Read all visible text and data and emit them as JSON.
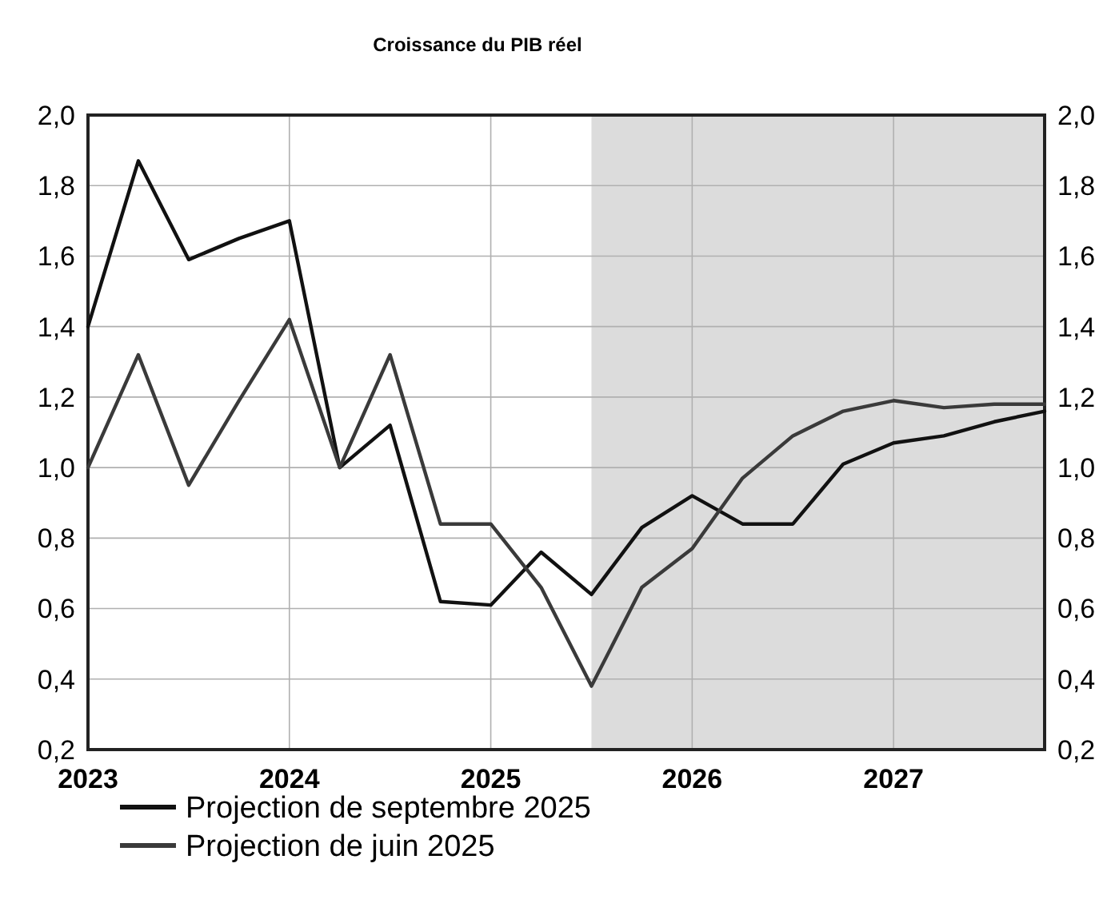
{
  "chart_data": {
    "type": "line",
    "title": "Croissance du PIB réel",
    "x": [
      2023,
      2023.25,
      2023.5,
      2023.75,
      2024,
      2024.25,
      2024.5,
      2024.75,
      2025,
      2025.25,
      2025.5,
      2025.75,
      2026,
      2026.25,
      2026.5,
      2026.75,
      2027,
      2027.25,
      2027.5,
      2027.75
    ],
    "series": [
      {
        "name": "Projection de septembre 2025",
        "color": "#111111",
        "values": [
          1.4,
          1.87,
          1.59,
          1.65,
          1.7,
          1.0,
          1.12,
          0.62,
          0.61,
          0.76,
          0.64,
          0.83,
          0.92,
          0.84,
          0.84,
          1.01,
          1.07,
          1.09,
          1.13,
          1.16
        ]
      },
      {
        "name": "Projection de juin 2025",
        "color": "#3a3a3a",
        "values": [
          1.0,
          1.32,
          0.95,
          1.19,
          1.42,
          1.0,
          1.32,
          0.84,
          0.84,
          0.66,
          0.38,
          0.66,
          0.77,
          0.97,
          1.09,
          1.16,
          1.19,
          1.17,
          1.18,
          1.18
        ]
      }
    ],
    "xlim": [
      2023,
      2027.75
    ],
    "xticks": [
      2023,
      2024,
      2025,
      2026,
      2027
    ],
    "ylim": [
      0.2,
      2.0
    ],
    "yticks": [
      {
        "value": 0.2,
        "label": "0,2"
      },
      {
        "value": 0.4,
        "label": "0,4"
      },
      {
        "value": 0.6,
        "label": "0,6"
      },
      {
        "value": 0.8,
        "label": "0,8"
      },
      {
        "value": 1.0,
        "label": "1,0"
      },
      {
        "value": 1.2,
        "label": "1,2"
      },
      {
        "value": 1.4,
        "label": "1,4"
      },
      {
        "value": 1.6,
        "label": "1,6"
      },
      {
        "value": 1.8,
        "label": "1,8"
      },
      {
        "value": 2.0,
        "label": "2,0"
      }
    ],
    "y2lim": [
      0.2,
      2.0
    ],
    "y2ticks": [
      {
        "value": 0.2,
        "label": "0,2"
      },
      {
        "value": 0.4,
        "label": "0,4"
      },
      {
        "value": 0.6,
        "label": "0,6"
      },
      {
        "value": 0.8,
        "label": "0,8"
      },
      {
        "value": 1.0,
        "label": "1,0"
      },
      {
        "value": 1.2,
        "label": "1,2"
      },
      {
        "value": 1.4,
        "label": "1,4"
      },
      {
        "value": 1.6,
        "label": "1,6"
      },
      {
        "value": 1.8,
        "label": "1,8"
      },
      {
        "value": 2.0,
        "label": "2,0"
      }
    ],
    "bands": [
      {
        "axis": "x",
        "from": 2025.5,
        "to": 2027.75,
        "color": "#dcdcdc"
      }
    ],
    "grid": true,
    "legend": "bottom",
    "line_style": "solid",
    "marker": "none"
  }
}
